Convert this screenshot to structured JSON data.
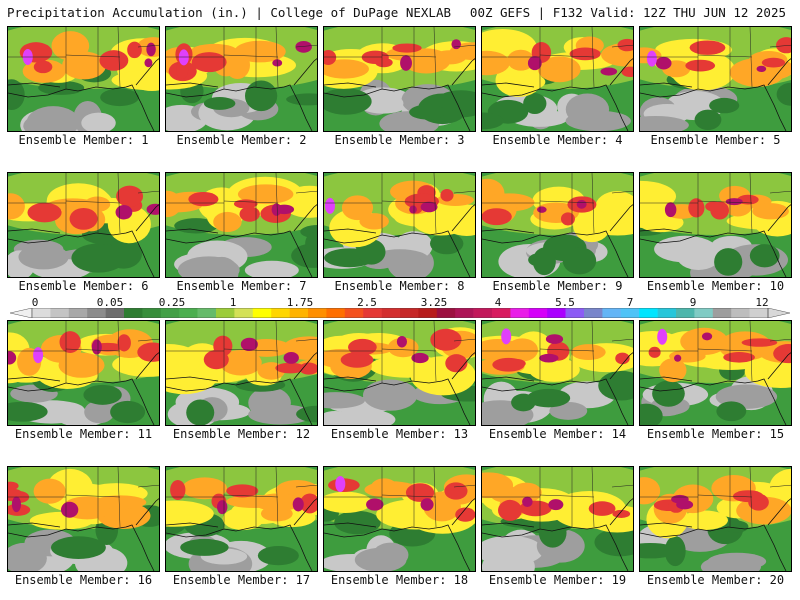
{
  "header": {
    "title": "Precipitation Accumulation (in.) | College of DuPage NEXLAB",
    "run": "00Z GEFS | F132 Valid: 12Z THU JUN 12 2025"
  },
  "panel_label_prefix": "Ensemble Member: ",
  "members": [
    {
      "label": "Ensemble Member: 1"
    },
    {
      "label": "Ensemble Member: 2"
    },
    {
      "label": "Ensemble Member: 3"
    },
    {
      "label": "Ensemble Member: 4"
    },
    {
      "label": "Ensemble Member: 5"
    },
    {
      "label": "Ensemble Member: 6"
    },
    {
      "label": "Ensemble Member: 7"
    },
    {
      "label": "Ensemble Member: 8"
    },
    {
      "label": "Ensemble Member: 9"
    },
    {
      "label": "Ensemble Member: 10"
    },
    {
      "label": "Ensemble Member: 11"
    },
    {
      "label": "Ensemble Member: 12"
    },
    {
      "label": "Ensemble Member: 13"
    },
    {
      "label": "Ensemble Member: 14"
    },
    {
      "label": "Ensemble Member: 15"
    },
    {
      "label": "Ensemble Member: 16"
    },
    {
      "label": "Ensemble Member: 17"
    },
    {
      "label": "Ensemble Member: 18"
    },
    {
      "label": "Ensemble Member: 19"
    },
    {
      "label": "Ensemble Member: 20"
    }
  ],
  "colorbar": {
    "tick_labels": [
      "0",
      "0.05",
      "0.25",
      "1",
      "1.75",
      "2.5",
      "3.25",
      "4",
      "5.5",
      "7",
      "9",
      "12"
    ],
    "colors": [
      "#dcdcdc",
      "#c4c4c4",
      "#a8a8a8",
      "#8c8c8c",
      "#6e6e6e",
      "#2e7d32",
      "#388e3c",
      "#43a047",
      "#4caf50",
      "#66bb6a",
      "#9ccc3a",
      "#d4e157",
      "#ffff00",
      "#ffd600",
      "#ffb300",
      "#ff8f00",
      "#ff6f00",
      "#f4511e",
      "#e53935",
      "#d32f2f",
      "#c62828",
      "#b71c1c",
      "#9c1040",
      "#ad1457",
      "#c2185b",
      "#d81b60",
      "#e91ee8",
      "#d500f9",
      "#aa00ff",
      "#8c5cf5",
      "#7986cb",
      "#64b5f6",
      "#4fc3f7",
      "#00e5ff",
      "#26c6da",
      "#4db6ac",
      "#80cbc4",
      "#9e9e9e",
      "#bdbdbd",
      "#d0d0d0"
    ]
  }
}
